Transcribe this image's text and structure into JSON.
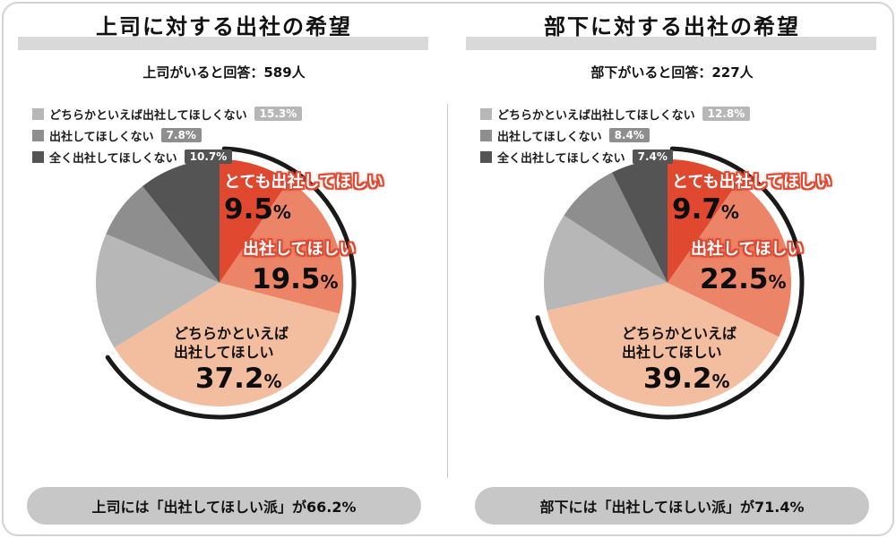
{
  "canvas": {
    "background": "#ffffff",
    "frame_border_color": "#d3d3d3",
    "divider_color": "#c9c9c9",
    "accent_red": "#dd4a33",
    "pill_background": "#c7c7c7",
    "title_bar_color": "#d9d9d9"
  },
  "panels": [
    {
      "title": "上司に対する出社の希望",
      "subtitle": "上司がいると回答：589人",
      "unit": "%",
      "legend": [
        {
          "label": "どちらかといえば出社してほしくない",
          "pct": "15.3%",
          "color": "#b7b7b7"
        },
        {
          "label": "出社してほしくない",
          "pct": "7.8%",
          "color": "#8e8e8e"
        },
        {
          "label": "全く出社してほしくない",
          "pct": "10.7%",
          "color": "#545454"
        }
      ],
      "callouts": {
        "c1_label": "とても出社してほしい",
        "c1_value": "9.5",
        "c2_label": "出社してほしい",
        "c2_value": "19.5",
        "c3_line1": "どちらかといえば",
        "c3_line2": "出社してほしい",
        "c3_value": "37.2"
      },
      "footer": "上司には「出社してほしい派」が66.2%"
    },
    {
      "title": "部下に対する出社の希望",
      "subtitle": "部下がいると回答：227人",
      "unit": "%",
      "legend": [
        {
          "label": "どちらかといえば出社してほしくない",
          "pct": "12.8%",
          "color": "#b7b7b7"
        },
        {
          "label": "出社してほしくない",
          "pct": "8.4%",
          "color": "#8e8e8e"
        },
        {
          "label": "全く出社してほしくない",
          "pct": "7.4%",
          "color": "#545454"
        }
      ],
      "callouts": {
        "c1_label": "とても出社してほしい",
        "c1_value": "9.7",
        "c2_label": "出社してほしい",
        "c2_value": "22.5",
        "c3_line1": "どちらかといえば",
        "c3_line2": "出社してほしい",
        "c3_value": "39.2"
      },
      "footer": "部下には「出社してほしい派」が71.4%"
    }
  ],
  "chart_data": [
    {
      "type": "pie",
      "title": "上司に対する出社の希望",
      "subtitle": "上司がいると回答：589人",
      "labels": [
        "とても出社してほしい",
        "出社してほしい",
        "どちらかといえば出社してほしい",
        "どちらかといえば出社してほしくない",
        "出社してほしくない",
        "全く出社してほしくない"
      ],
      "values": [
        9.5,
        19.5,
        37.2,
        15.3,
        7.8,
        10.7
      ],
      "colors": [
        "#e0492f",
        "#ec8467",
        "#f3bda0",
        "#b7b7b7",
        "#8e8e8e",
        "#545454"
      ],
      "start_angle_deg": 0,
      "direction": "clockwise",
      "legend_position": "top-left",
      "highlight_arc_pct": 66.2,
      "highlight_arc_color": "#1a1a1a",
      "summary": "上司には「出社してほしい派」が66.2%"
    },
    {
      "type": "pie",
      "title": "部下に対する出社の希望",
      "subtitle": "部下がいると回答：227人",
      "labels": [
        "とても出社してほしい",
        "出社してほしい",
        "どちらかといえば出社してほしい",
        "どちらかといえば出社してほしくない",
        "出社してほしくない",
        "全く出社してほしくない"
      ],
      "values": [
        9.7,
        22.5,
        39.2,
        12.8,
        8.4,
        7.4
      ],
      "colors": [
        "#e0492f",
        "#ec8467",
        "#f3bda0",
        "#b7b7b7",
        "#8e8e8e",
        "#545454"
      ],
      "start_angle_deg": 0,
      "direction": "clockwise",
      "legend_position": "top-left",
      "highlight_arc_pct": 71.4,
      "highlight_arc_color": "#1a1a1a",
      "summary": "部下には「出社してほしい派」が71.4%"
    }
  ]
}
